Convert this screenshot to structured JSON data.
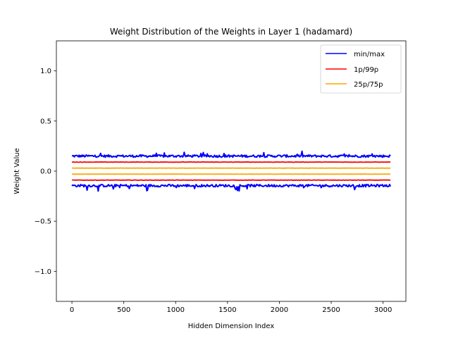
{
  "chart_data": {
    "type": "line",
    "title": "Weight Distribution of the Weights in Layer 1 (hadamard)",
    "xlabel": "Hidden Dimension Index",
    "ylabel": "Weight Value",
    "xlim": [
      -150,
      3220
    ],
    "ylim": [
      -1.3,
      1.3
    ],
    "xticks": [
      0,
      500,
      1000,
      1500,
      2000,
      2500,
      3000
    ],
    "xtick_labels": [
      "0",
      "500",
      "1000",
      "1500",
      "2000",
      "2500",
      "3000"
    ],
    "yticks": [
      -1.0,
      -0.5,
      0.0,
      0.5,
      1.0
    ],
    "ytick_labels": [
      "−1.0",
      "−0.5",
      "0.0",
      "0.5",
      "1.0"
    ],
    "grid": false,
    "legend_position": "upper right",
    "x_range": [
      0,
      3071
    ],
    "series": [
      {
        "name": "min/max",
        "color": "#0000ff",
        "role": "max",
        "mean": 0.15,
        "noise": 0.012,
        "spike": 0.05
      },
      {
        "name": "min/max",
        "color": "#0000ff",
        "role": "min",
        "mean": -0.145,
        "noise": 0.012,
        "spike": -0.06
      },
      {
        "name": "1p/99p",
        "color": "#ff0000",
        "role": "upper",
        "mean": 0.09,
        "noise": 0.002,
        "spike": 0
      },
      {
        "name": "1p/99p",
        "color": "#ff0000",
        "role": "lower",
        "mean": -0.09,
        "noise": 0.002,
        "spike": 0
      },
      {
        "name": "25p/75p",
        "color": "#ffa500",
        "role": "upper",
        "mean": 0.03,
        "noise": 0.001,
        "spike": 0
      },
      {
        "name": "25p/75p",
        "color": "#ffa500",
        "role": "lower",
        "mean": -0.03,
        "noise": 0.001,
        "spike": 0
      }
    ],
    "legend": [
      {
        "label": "min/max",
        "color": "#0000ff"
      },
      {
        "label": "1p/99p",
        "color": "#ff0000"
      },
      {
        "label": "25p/75p",
        "color": "#ffa500"
      }
    ]
  }
}
